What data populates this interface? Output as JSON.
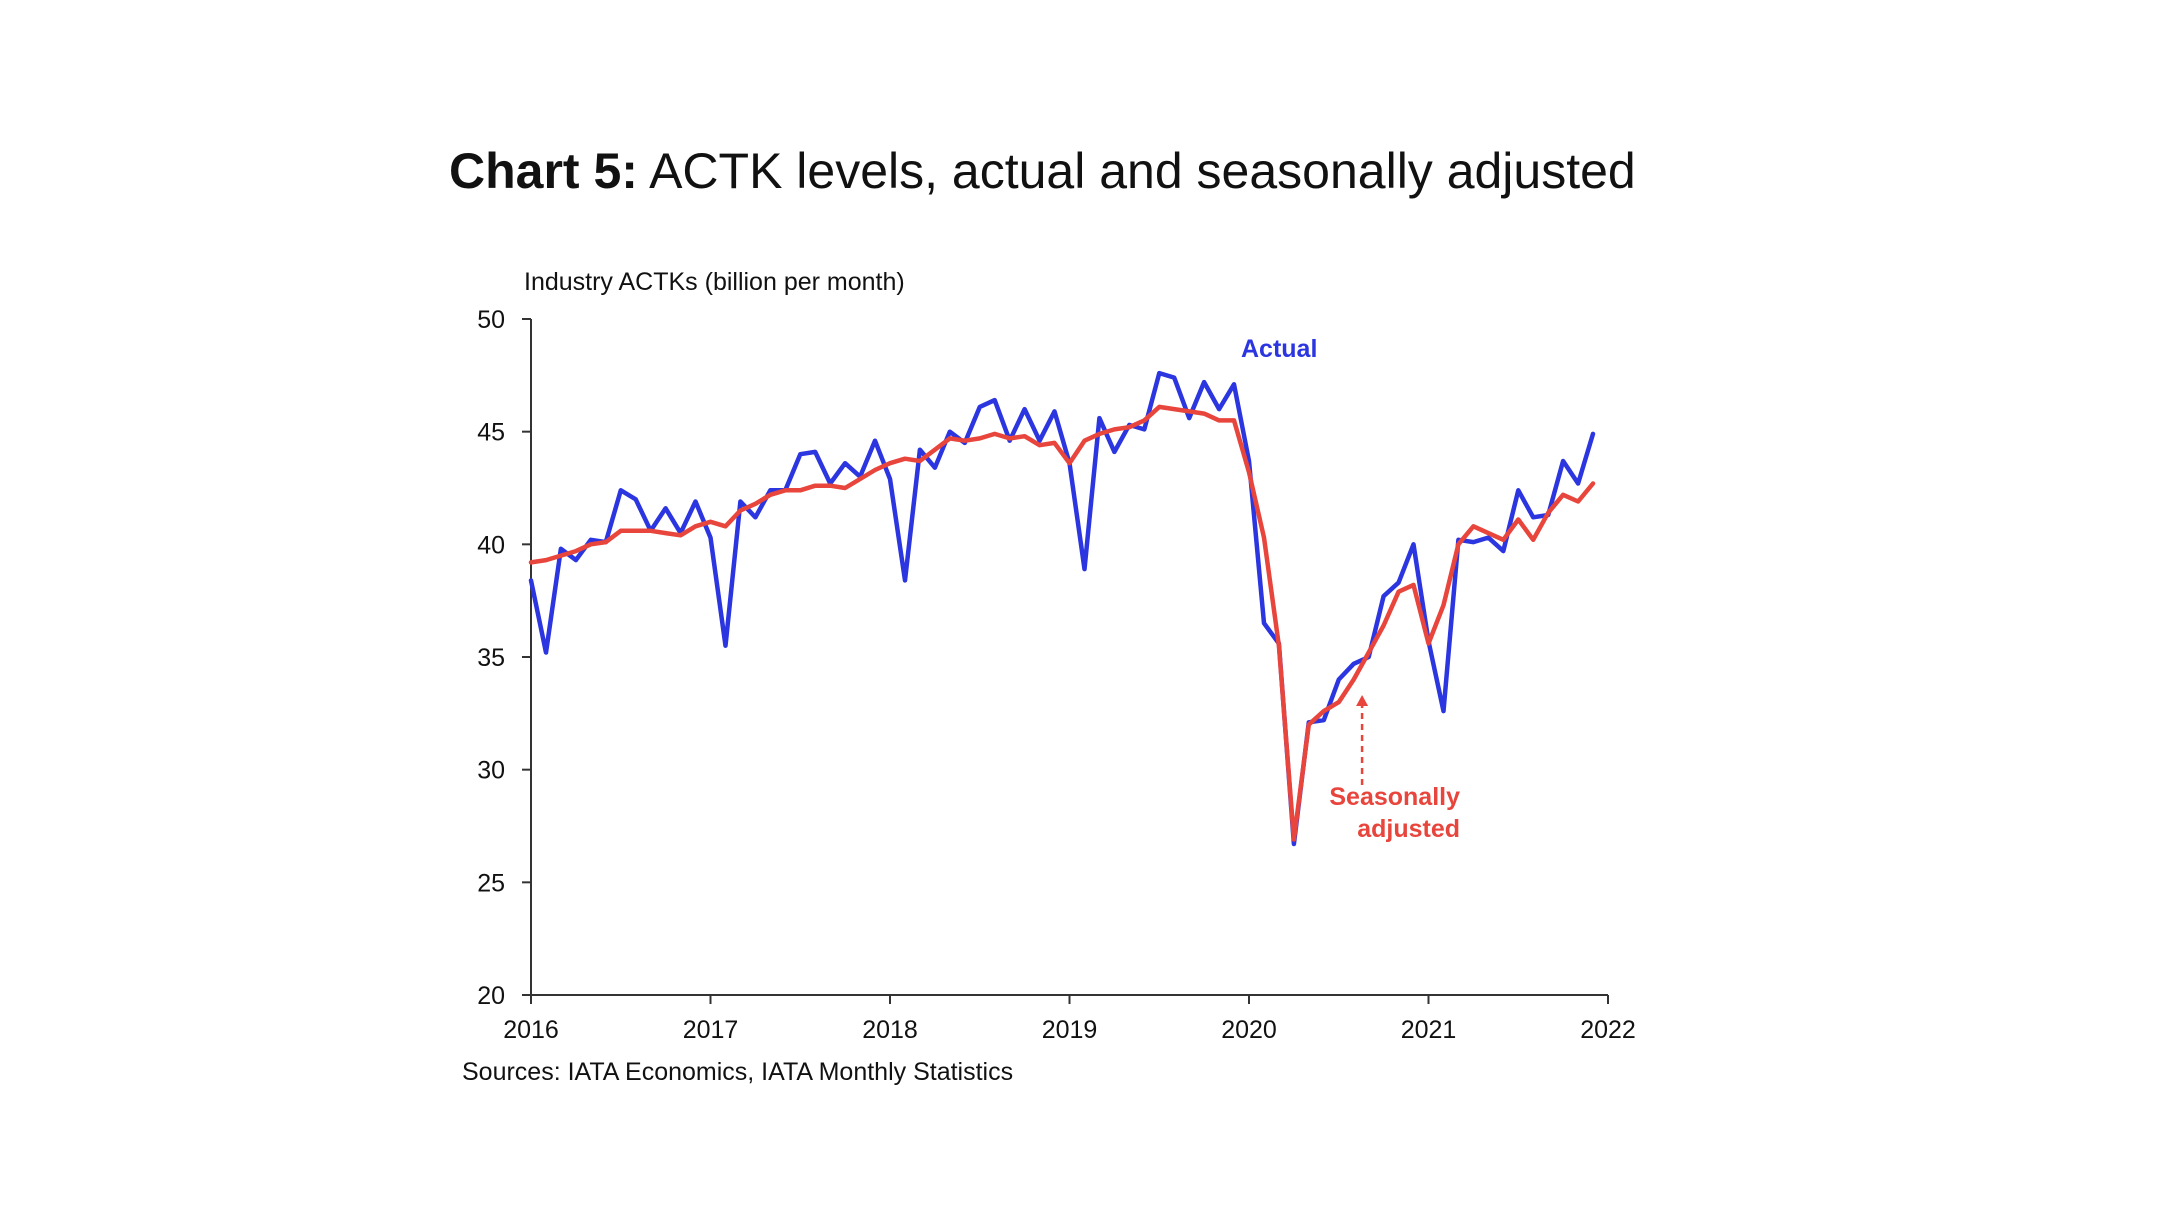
{
  "title_prefix": "Chart 5:",
  "title_text": "ACTK levels, actual and seasonally adjusted",
  "source": "Sources: IATA Economics, IATA Monthly Statistics",
  "chart_data": {
    "type": "line",
    "ylabel": "Industry ACTKs (billion per month)",
    "xlabel": "",
    "ylim": [
      20,
      50
    ],
    "yticks": [
      20,
      25,
      30,
      35,
      40,
      45,
      50
    ],
    "xlim": [
      2016,
      2022
    ],
    "xticks": [
      "2016",
      "2017",
      "2018",
      "2019",
      "2020",
      "2021",
      "2022"
    ],
    "x_start": 2016,
    "x_step_months": 1,
    "colors": {
      "actual": "#2b35e0",
      "seasonally_adjusted": "#e8453c",
      "axis": "#333333"
    },
    "annotations": {
      "actual_label": "Actual",
      "sa_label_line1": "Seasonally",
      "sa_label_line2": "adjusted",
      "arrow_to_year": 2020.63
    },
    "series": [
      {
        "name": "Actual",
        "values": [
          38.4,
          35.2,
          39.8,
          39.3,
          40.2,
          40.1,
          42.4,
          42.0,
          40.6,
          41.6,
          40.5,
          41.9,
          40.3,
          35.5,
          41.9,
          41.2,
          42.4,
          42.4,
          44.0,
          44.1,
          42.7,
          43.6,
          43.0,
          44.6,
          42.9,
          38.4,
          44.2,
          43.4,
          45.0,
          44.5,
          46.1,
          46.4,
          44.6,
          46.0,
          44.6,
          45.9,
          43.6,
          38.9,
          45.6,
          44.1,
          45.3,
          45.1,
          47.6,
          47.4,
          45.6,
          47.2,
          46.0,
          47.1,
          43.7,
          36.5,
          35.6,
          26.7,
          32.1,
          32.2,
          34.0,
          34.7,
          35.0,
          37.7,
          38.3,
          40.0,
          35.7,
          32.6,
          40.2,
          40.1,
          40.3,
          39.7,
          42.4,
          41.2,
          41.3,
          43.7,
          42.7,
          44.9
        ]
      },
      {
        "name": "Seasonally adjusted",
        "values": [
          39.2,
          39.3,
          39.5,
          39.7,
          40.0,
          40.1,
          40.6,
          40.6,
          40.6,
          40.5,
          40.4,
          40.8,
          41.0,
          40.8,
          41.5,
          41.8,
          42.2,
          42.4,
          42.4,
          42.6,
          42.6,
          42.5,
          42.9,
          43.3,
          43.6,
          43.8,
          43.7,
          44.2,
          44.7,
          44.6,
          44.7,
          44.9,
          44.7,
          44.8,
          44.4,
          44.5,
          43.6,
          44.6,
          44.9,
          45.1,
          45.2,
          45.5,
          46.1,
          46.0,
          45.9,
          45.8,
          45.5,
          45.5,
          43.2,
          40.3,
          35.5,
          26.9,
          32.0,
          32.6,
          33.0,
          34.0,
          35.2,
          36.4,
          37.9,
          38.2,
          35.6,
          37.3,
          40.0,
          40.8,
          40.5,
          40.2,
          41.1,
          40.2,
          41.4,
          42.2,
          41.9,
          42.7
        ]
      }
    ]
  }
}
